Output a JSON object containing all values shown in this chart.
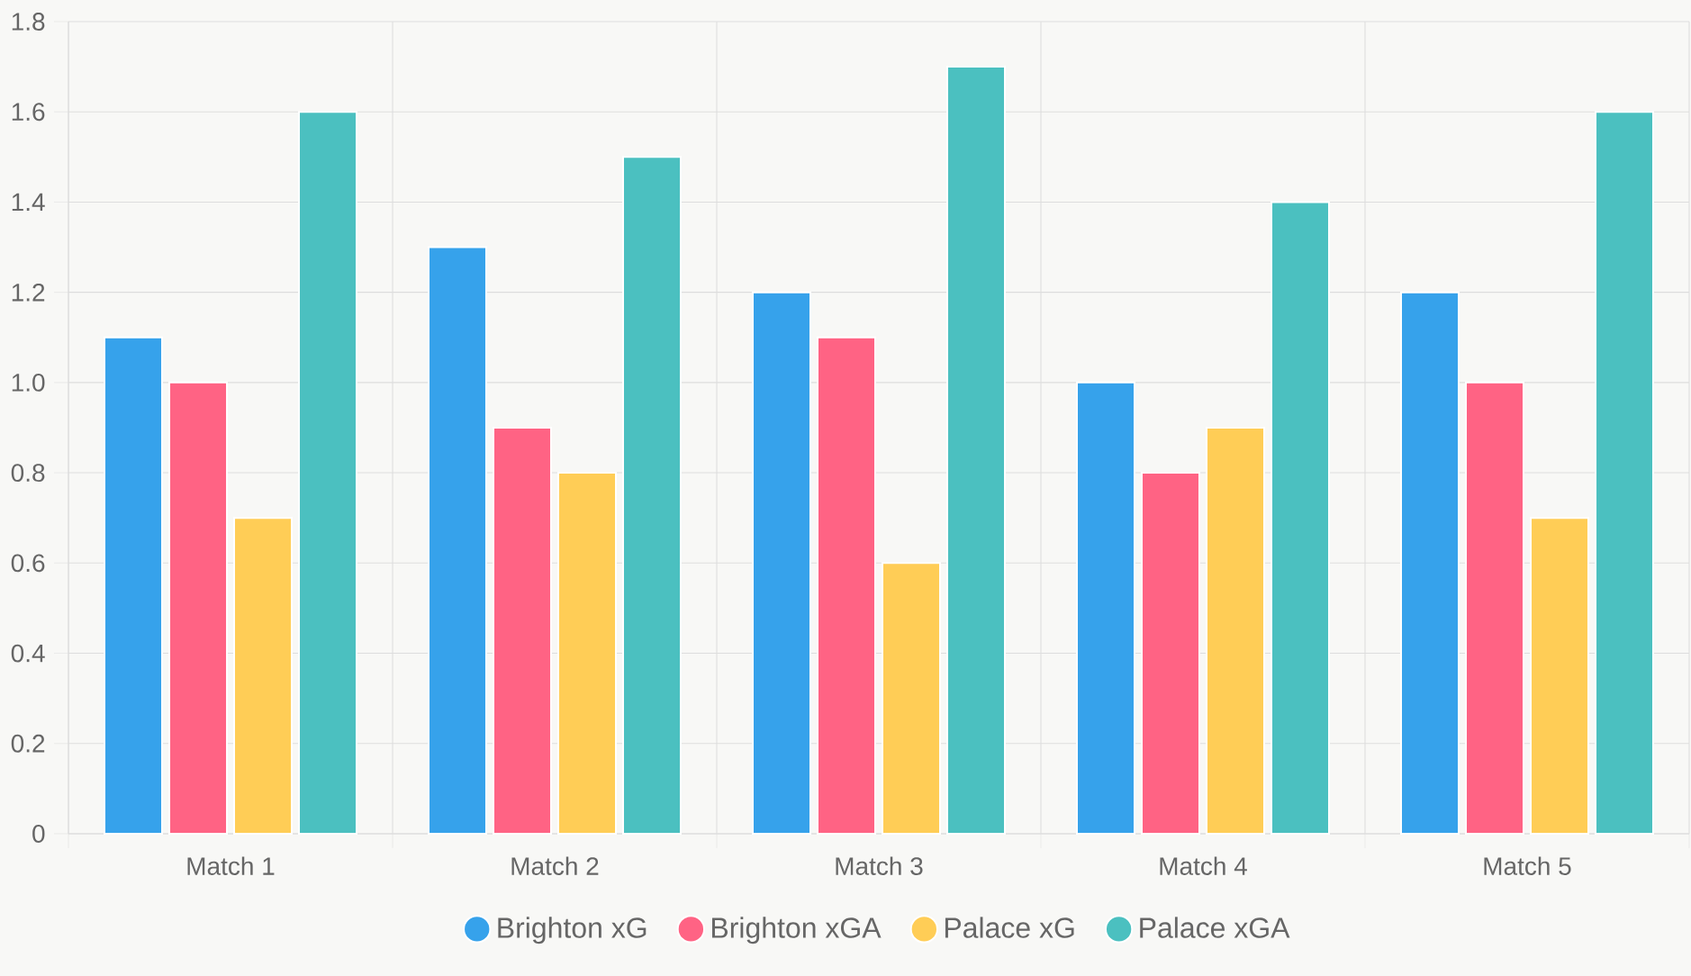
{
  "chart_data": {
    "type": "bar",
    "categories": [
      "Match 1",
      "Match 2",
      "Match 3",
      "Match 4",
      "Match 5"
    ],
    "series": [
      {
        "name": "Brighton xG",
        "color": "#36a2eb",
        "values": [
          1.1,
          1.3,
          1.2,
          1.0,
          1.2
        ]
      },
      {
        "name": "Brighton xGA",
        "color": "#ff6384",
        "values": [
          1.0,
          0.9,
          1.1,
          0.8,
          1.0
        ]
      },
      {
        "name": "Palace xG",
        "color": "#ffcd56",
        "values": [
          0.7,
          0.8,
          0.6,
          0.9,
          0.7
        ]
      },
      {
        "name": "Palace xGA",
        "color": "#4bc0c0",
        "values": [
          1.6,
          1.5,
          1.7,
          1.4,
          1.6
        ]
      }
    ],
    "ylim": [
      0,
      1.8
    ],
    "yticks": [
      {
        "value": 0,
        "label": "0"
      },
      0.2,
      0.4,
      0.6,
      0.8,
      {
        "value": 1,
        "label": "1.0"
      },
      1.2,
      1.4,
      1.6,
      1.8
    ],
    "grid": true,
    "legend": "bottom"
  }
}
